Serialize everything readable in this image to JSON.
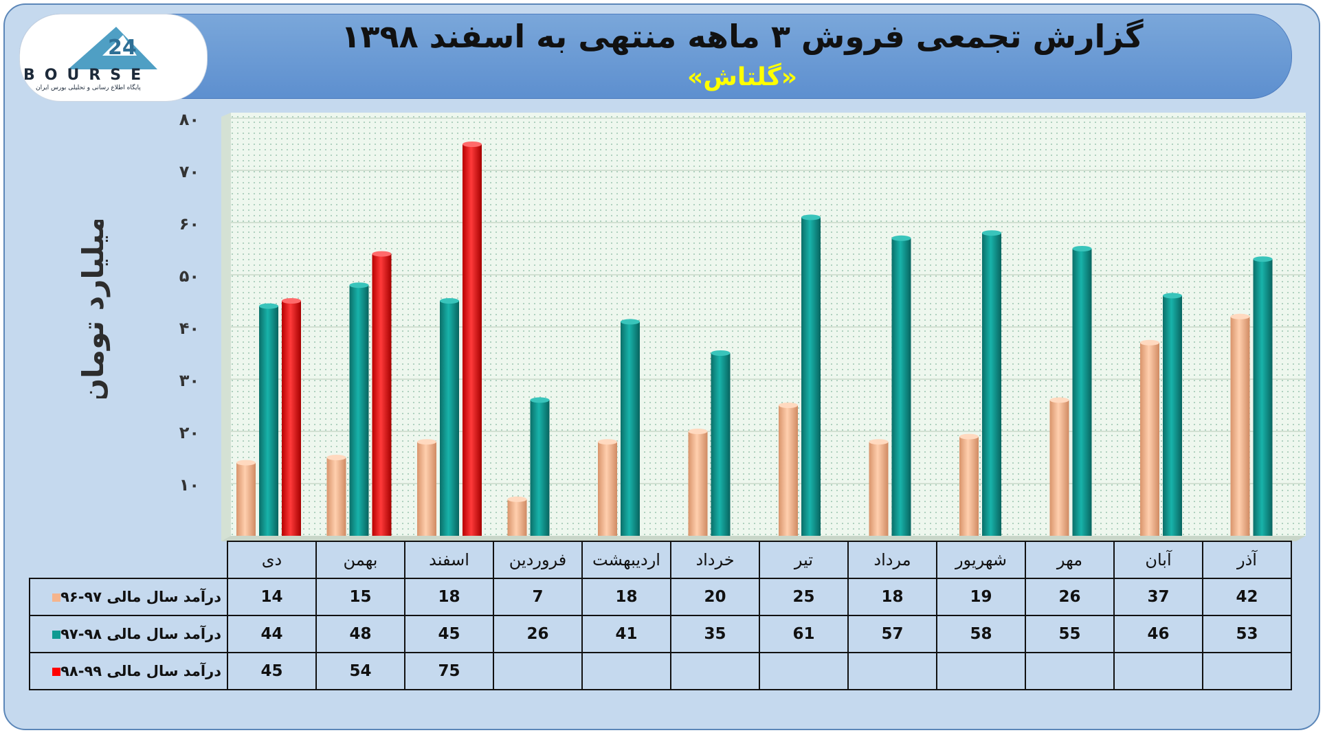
{
  "title": "گزارش تجمعی فروش ۳ ماهه منتهی به اسفند ۱۳۹۸",
  "subtitle": "«گلتاش»",
  "logo": {
    "text": "BOURSE",
    "tagline": "پایگاه اطلاع رسانی و تحلیلی بورس ایران"
  },
  "colors": {
    "s1": "#f5b48c",
    "s2": "#0f9a92",
    "s3": "#ff0000",
    "plot_bg": "#eef7ee"
  },
  "chart_data": {
    "type": "bar",
    "ylabel": "میلیارد تومان",
    "ylim": [
      0,
      80
    ],
    "yticks": [
      "۱۰",
      "۲۰",
      "۳۰",
      "۴۰",
      "۵۰",
      "۶۰",
      "۷۰",
      "۸۰"
    ],
    "grid": true,
    "categories": [
      "دی",
      "بهمن",
      "اسفند",
      "فروردین",
      "اردیبهشت",
      "خرداد",
      "تیر",
      "مرداد",
      "شهریور",
      "مهر",
      "آبان",
      "آذر"
    ],
    "series": [
      {
        "name": "درآمد سال مالی ۹۷-۹۶",
        "values": [
          14,
          15,
          18,
          7,
          18,
          20,
          25,
          18,
          19,
          26,
          37,
          42
        ]
      },
      {
        "name": "درآمد سال مالی ۹۸-۹۷",
        "values": [
          44,
          48,
          45,
          26,
          41,
          35,
          61,
          57,
          58,
          55,
          46,
          53
        ]
      },
      {
        "name": "درآمد سال مالی ۹۹-۹۸",
        "values": [
          45,
          54,
          75,
          null,
          null,
          null,
          null,
          null,
          null,
          null,
          null,
          null
        ]
      }
    ]
  }
}
